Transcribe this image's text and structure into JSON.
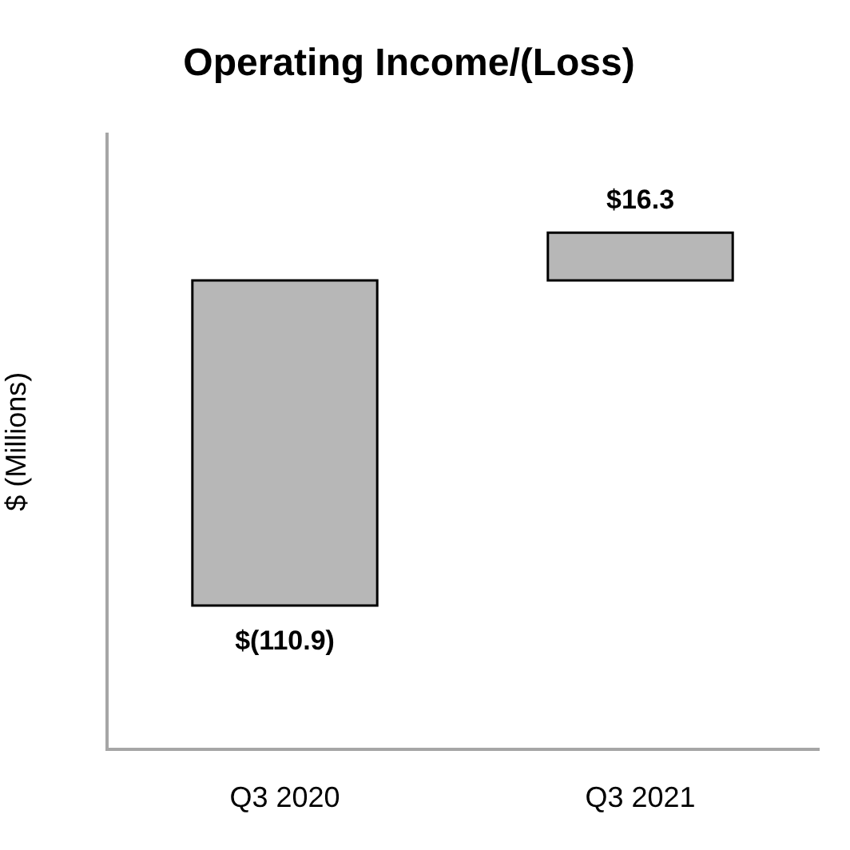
{
  "chart_data": {
    "type": "bar",
    "title": "Operating Income/(Loss)",
    "ylabel": "$ (Millions)",
    "categories": [
      "Q3 2020",
      "Q3 2021"
    ],
    "values": [
      -110.9,
      16.3
    ],
    "value_labels": [
      "$(110.9)",
      "$16.3"
    ],
    "color": "#b7b7b7",
    "tick_labels": "x"
  }
}
